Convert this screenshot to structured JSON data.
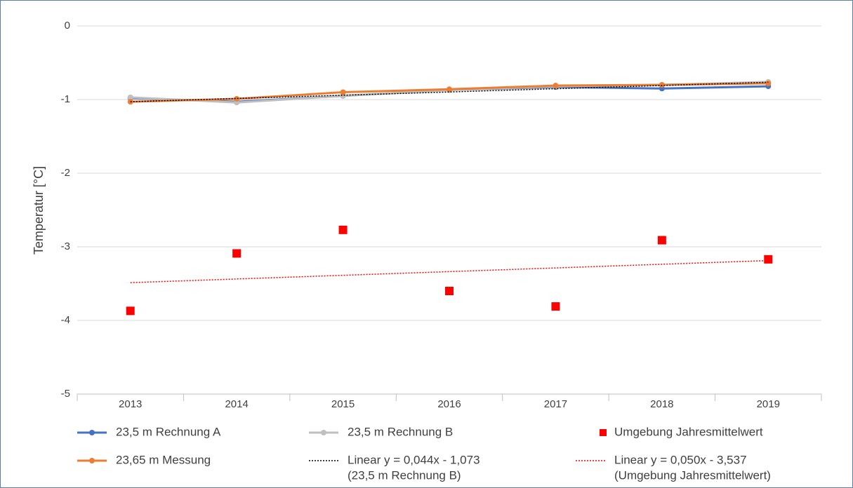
{
  "chart_data": {
    "type": "line",
    "y_label": "Temperatur [°C]",
    "categories": [
      "2013",
      "2014",
      "2015",
      "2016",
      "2017",
      "2018",
      "2019"
    ],
    "ylim": [
      -5,
      0
    ],
    "yticks": [
      0,
      -1,
      -2,
      -3,
      -4,
      -5
    ],
    "grid": true,
    "series": [
      {
        "name": [
          "23,5 m Rechnung A"
        ],
        "style": "line",
        "color": "#4472c4",
        "values": [
          -0.98,
          -1.03,
          -0.95,
          -0.87,
          -0.83,
          -0.85,
          -0.82
        ]
      },
      {
        "name": [
          "23,5 m Rechnung B"
        ],
        "style": "line",
        "color": "#bfbfbf",
        "values": [
          -0.97,
          -1.04,
          -0.95,
          -0.87,
          -0.82,
          -0.8,
          -0.76
        ]
      },
      {
        "name": [
          "Umgebung Jahresmittelwert"
        ],
        "style": "marker",
        "color": "#ff0000",
        "values": [
          -3.87,
          -3.09,
          -2.77,
          -3.6,
          -3.81,
          -2.91,
          -3.17
        ]
      },
      {
        "name": [
          "23,65 m Messung"
        ],
        "style": "line",
        "color": "#ed7d31",
        "values": [
          -1.03,
          -0.99,
          -0.9,
          -0.86,
          -0.81,
          -0.8,
          -0.78
        ]
      },
      {
        "name": [
          "Linear y = 0,044x - 1,073",
          "(23,5 m Rechnung B)"
        ],
        "style": "trend",
        "color": "#000000",
        "values": [
          -1.029,
          -0.985,
          -0.941,
          -0.897,
          -0.853,
          -0.809,
          -0.765
        ]
      },
      {
        "name": [
          "Linear y = 0,050x - 3,537",
          "(Umgebung Jahresmittelwert)"
        ],
        "style": "trend",
        "color": "#ff0000",
        "values": [
          -3.487,
          -3.437,
          -3.387,
          -3.337,
          -3.287,
          -3.237,
          -3.187
        ]
      }
    ]
  }
}
